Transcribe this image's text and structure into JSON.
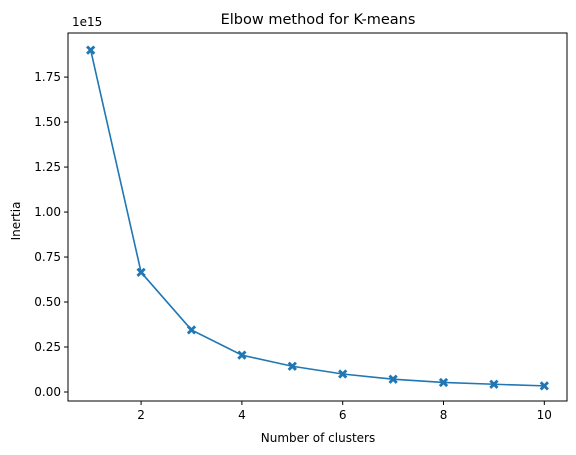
{
  "chart_data": {
    "type": "line",
    "title": "Elbow method for K-means",
    "xlabel": "Number of clusters",
    "ylabel": "Inertia",
    "y_offset_label": "1e15",
    "x": [
      1,
      2,
      3,
      4,
      5,
      6,
      7,
      8,
      9,
      10
    ],
    "series": [
      {
        "values": [
          1.9,
          0.665,
          0.345,
          0.205,
          0.143,
          0.1,
          0.071,
          0.053,
          0.043,
          0.034
        ],
        "color": "#1f77b4",
        "marker": "X"
      }
    ],
    "xlim": [
      0.55,
      10.45
    ],
    "ylim": [
      -0.05,
      1.995
    ],
    "xticks": [
      "2",
      "4",
      "6",
      "8",
      "10"
    ],
    "xtick_values": [
      2,
      4,
      6,
      8,
      10
    ],
    "yticks": [
      "0.00",
      "0.25",
      "0.50",
      "0.75",
      "1.00",
      "1.25",
      "1.50",
      "1.75"
    ],
    "ytick_values": [
      0.0,
      0.25,
      0.5,
      0.75,
      1.0,
      1.25,
      1.5,
      1.75
    ],
    "grid": false,
    "legend": false
  }
}
